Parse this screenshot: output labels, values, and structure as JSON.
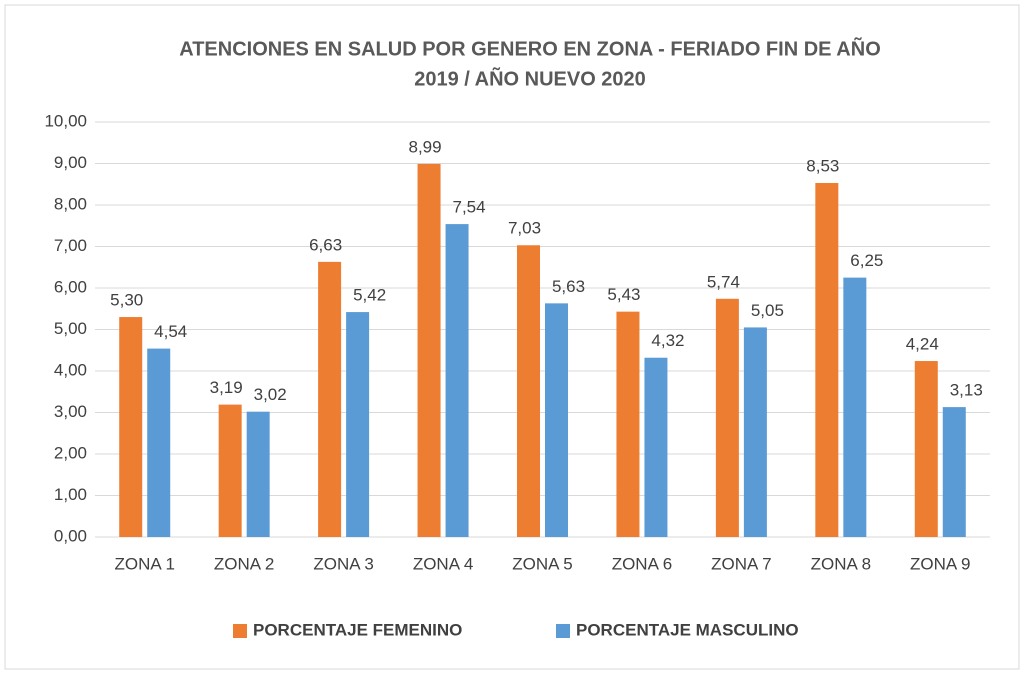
{
  "chart_data": {
    "type": "bar",
    "title": [
      "ATENCIONES EN SALUD POR GENERO EN ZONA - FERIADO FIN DE AÑO",
      "2019 / AÑO NUEVO 2020"
    ],
    "categories": [
      "ZONA 1",
      "ZONA 2",
      "ZONA 3",
      "ZONA 4",
      "ZONA 5",
      "ZONA 6",
      "ZONA 7",
      "ZONA 8",
      "ZONA 9"
    ],
    "series": [
      {
        "name": "PORCENTAJE FEMENINO",
        "color": "#ed7d31",
        "values": [
          5.3,
          3.19,
          6.63,
          8.99,
          7.03,
          5.43,
          5.74,
          8.53,
          4.24
        ],
        "value_labels": [
          "5,30",
          "3,19",
          "6,63",
          "8,99",
          "7,03",
          "5,43",
          "5,74",
          "8,53",
          "4,24"
        ]
      },
      {
        "name": "PORCENTAJE MASCULINO",
        "color": "#5b9bd5",
        "values": [
          4.54,
          3.02,
          5.42,
          7.54,
          5.63,
          4.32,
          5.05,
          6.25,
          3.13
        ],
        "value_labels": [
          "4,54",
          "3,02",
          "5,42",
          "7,54",
          "5,63",
          "4,32",
          "5,05",
          "6,25",
          "3,13"
        ]
      }
    ],
    "ylim": [
      0,
      10
    ],
    "yticks": [
      {
        "value": 0,
        "label": "0,00"
      },
      {
        "value": 1,
        "label": "1,00"
      },
      {
        "value": 2,
        "label": "2,00"
      },
      {
        "value": 3,
        "label": "3,00"
      },
      {
        "value": 4,
        "label": "4,00"
      },
      {
        "value": 5,
        "label": "5,00"
      },
      {
        "value": 6,
        "label": "6,00"
      },
      {
        "value": 7,
        "label": "7,00"
      },
      {
        "value": 8,
        "label": "8,00"
      },
      {
        "value": 9,
        "label": "9,00"
      },
      {
        "value": 10,
        "label": "10,00"
      }
    ],
    "grid": true,
    "legend": "bottom"
  }
}
